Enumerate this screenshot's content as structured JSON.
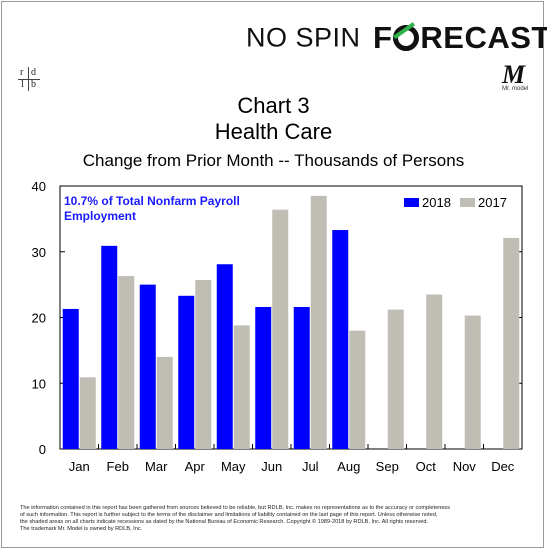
{
  "brand": {
    "nospin": "NO SPIN",
    "forecast_pre": "F",
    "forecast_post": "RECAST"
  },
  "logo_left": {
    "r": "r",
    "d": "d",
    "l": "l",
    "b": "b"
  },
  "logo_right": {
    "m": "M",
    "sub": "Mr. model"
  },
  "chart_data": {
    "type": "bar",
    "title": "Chart 3",
    "subtitle": "Health Care",
    "caption": "Change from Prior Month -- Thousands of Persons",
    "annotation_lines": [
      "10.7% of Total Nonfarm Payroll",
      "Employment"
    ],
    "categories": [
      "Jan",
      "Feb",
      "Mar",
      "Apr",
      "May",
      "Jun",
      "Jul",
      "Aug",
      "Sep",
      "Oct",
      "Nov",
      "Dec"
    ],
    "series": [
      {
        "name": "2018",
        "color": "#0000ff",
        "values": [
          21.3,
          30.9,
          25.0,
          23.3,
          28.1,
          21.6,
          21.6,
          33.3,
          null,
          null,
          null,
          null
        ]
      },
      {
        "name": "2017",
        "color": "#c0bdb4",
        "values": [
          10.9,
          26.3,
          14.0,
          25.7,
          18.8,
          36.4,
          38.5,
          18.0,
          21.2,
          23.5,
          20.3,
          32.1
        ]
      }
    ],
    "ylim": [
      0,
      40
    ],
    "yticks": [
      0,
      10,
      20,
      30,
      40
    ],
    "xlabel": "",
    "ylabel": "",
    "legend": "top-right",
    "grid": false
  },
  "footer": {
    "lines": [
      "The information contained in this report has been gathered from sources believed to be reliable, but RDLB, Inc. makes no representations as to the accuracy or completeness",
      "of such information. This report is further subject to the terms of the disclaimer and limitations of liability contained on the last page of this report. Unless otherwise noted,",
      "the shaded areas on all charts indicate recessions as dated by the National Bureau of Economic Research. Copyright © 1989-2018 by RDLB, Inc. All rights reserved.",
      "The trademark Mr. Model is owned by RDLB, Inc."
    ]
  }
}
